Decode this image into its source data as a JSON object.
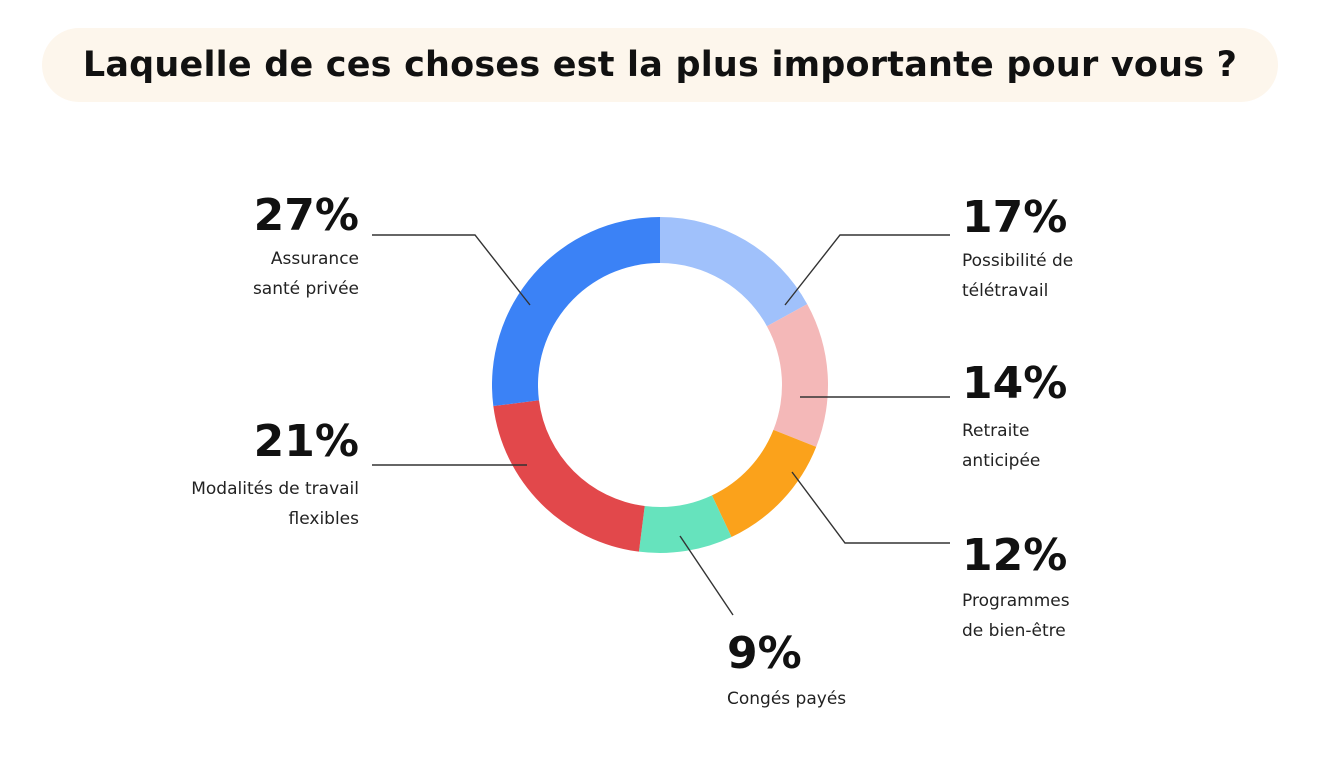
{
  "title": "Laquelle de ces choses est la plus importante pour vous ?",
  "chart_data": {
    "type": "donut",
    "title": "Laquelle de ces choses est la plus importante pour vous ?",
    "slices": [
      {
        "label_lines": [
          "Possibilité de",
          "télétravail"
        ],
        "value": 17,
        "value_label": "17%",
        "color": "#a0c1fb"
      },
      {
        "label_lines": [
          "Retraite",
          "anticipée"
        ],
        "value": 14,
        "value_label": "14%",
        "color": "#f4b8b8"
      },
      {
        "label_lines": [
          "Programmes",
          "de bien-être"
        ],
        "value": 12,
        "value_label": "12%",
        "color": "#fba21b"
      },
      {
        "label_lines": [
          "Congés payés"
        ],
        "value": 9,
        "value_label": "9%",
        "color": "#66e3bd"
      },
      {
        "label_lines": [
          "Modalités de travail",
          "flexibles"
        ],
        "value": 21,
        "value_label": "21%",
        "color": "#e2484b"
      },
      {
        "label_lines": [
          "Assurance",
          "santé privée"
        ],
        "value": 27,
        "value_label": "27%",
        "color": "#3b82f6"
      }
    ]
  }
}
